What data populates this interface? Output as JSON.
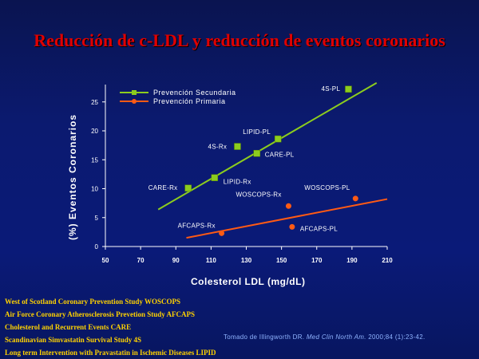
{
  "title": "Reducción de c-LDL y reducción de eventos coronarios",
  "colors": {
    "secundaria": "#8ccc1e",
    "primaria": "#ff5a14",
    "axis": "#ffffff",
    "footnote": "#ffd200",
    "title": "#e00000"
  },
  "chart_data": {
    "type": "scatter",
    "xlabel": "Colesterol LDL (mg/dL)",
    "ylabel": "(%) Eventos Coronarios",
    "xlim": [
      50,
      210
    ],
    "ylim": [
      0,
      28
    ],
    "xticks": [
      "50",
      "70",
      "90",
      "110",
      "130",
      "150",
      "170",
      "190",
      "210"
    ],
    "yticks": [
      "0",
      "5",
      "10",
      "15",
      "20",
      "25"
    ],
    "grid": false,
    "legend_position": "top-left",
    "series": [
      {
        "name": "Prevención Secundaria",
        "marker": "square",
        "points": [
          {
            "label": "4S-PL",
            "x": 188,
            "y": 27.2
          },
          {
            "label": "LIPID-PL",
            "x": 148,
            "y": 18.6
          },
          {
            "label": "4S-Rx",
            "x": 125,
            "y": 17.3
          },
          {
            "label": "CARE-PL",
            "x": 136,
            "y": 16.1
          },
          {
            "label": "LIPID-Rx",
            "x": 112,
            "y": 11.9
          },
          {
            "label": "CARE-Rx",
            "x": 97,
            "y": 10.1
          }
        ],
        "trend": {
          "x": [
            80,
            204
          ],
          "y": [
            6.4,
            28.3
          ]
        }
      },
      {
        "name": "Prevención Primaria",
        "marker": "circle",
        "points": [
          {
            "label": "WOSCOPS-PL",
            "x": 192,
            "y": 8.3
          },
          {
            "label": "WOSCOPS-Rx",
            "x": 154,
            "y": 7.0
          },
          {
            "label": "AFCAPS-PL",
            "x": 156,
            "y": 3.4
          },
          {
            "label": "AFCAPS-Rx",
            "x": 116,
            "y": 2.3
          }
        ],
        "trend": {
          "x": [
            96,
            210
          ],
          "y": [
            1.5,
            8.2
          ]
        }
      }
    ]
  },
  "footnotes": [
    "West of Scotland Coronary Prevention Study  WOSCOPS",
    "Air Force Coronary Atherosclerosis Prevetion Study   AFCAPS",
    "Cholesterol and Recurrent Events    CARE",
    "Scandinavian Simvastatin Survival Study  4S",
    "Long term Intervention with Pravastatin in Ischemic Diseases  LIPID"
  ],
  "source": {
    "prefix": "Tomado de Illingworth DR. ",
    "journal": "Med Clin North Am.",
    "suffix": " 2000;84 (1):23-42."
  }
}
